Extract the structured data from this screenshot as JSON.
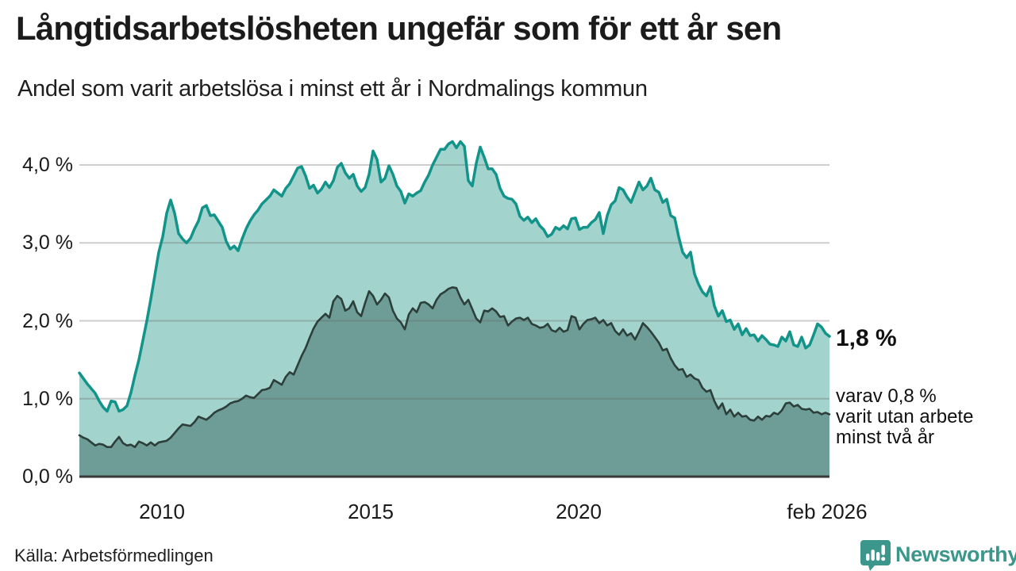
{
  "header": {
    "title": "Långtidsarbetslösheten ungefär som för ett år sen",
    "subtitle": "Andel som varit arbetslösa i minst ett år i Nordmalings kommun"
  },
  "annotations": {
    "end_value": "1,8 %",
    "secondary_line1": "varav 0,8 %",
    "secondary_line2": "varit utan arbete",
    "secondary_line3": "minst två år"
  },
  "footer": {
    "source": "Källa: Arbetsförmedlingen",
    "logo_text": "Newsworthy"
  },
  "colors": {
    "total_line": "#12948a",
    "total_fill": "#a2d3cc",
    "two_plus_line": "#2d3f3a",
    "two_plus_fill": "#6e9c96",
    "grid": "rgba(100,100,100,0.32)",
    "axis": "#3a3a3a",
    "brand": "#3b968b"
  },
  "chart_data": {
    "type": "area",
    "title": "Långtidsarbetslösheten ungefär som för ett år sen",
    "subtitle": "Andel som varit arbetslösa i minst ett år i Nordmalings kommun",
    "unit": "%",
    "x_unit": "year (monthly data, Jan 2008 – Feb 2026)",
    "x_start": 2008.0,
    "x_end": 2026.17,
    "ylim": [
      0,
      4.49
    ],
    "grid": true,
    "legend": "none",
    "yticks": [
      {
        "value": 4.0,
        "label": "4,0 %"
      },
      {
        "value": 3.0,
        "label": "3,0 %"
      },
      {
        "value": 2.0,
        "label": "2,0 %"
      },
      {
        "value": 1.0,
        "label": "1,0 %"
      },
      {
        "value": 0.0,
        "label": "0,0 %"
      }
    ],
    "xticks": [
      {
        "value": 2010,
        "label": "2010"
      },
      {
        "value": 2015,
        "label": "2015"
      },
      {
        "value": 2020,
        "label": "2020"
      },
      {
        "value": 2026.08,
        "label": "feb 2026"
      }
    ],
    "series": [
      {
        "name": "Andel arbetslösa minst ett år",
        "end_label": "1,8 %",
        "values": [
          1.33,
          1.26,
          1.19,
          1.13,
          1.07,
          0.97,
          0.89,
          0.84,
          0.97,
          0.96,
          0.84,
          0.86,
          0.91,
          1.08,
          1.3,
          1.5,
          1.75,
          2.0,
          2.28,
          2.58,
          2.88,
          3.08,
          3.38,
          3.55,
          3.38,
          3.12,
          3.05,
          3.0,
          3.06,
          3.18,
          3.28,
          3.45,
          3.48,
          3.35,
          3.36,
          3.28,
          3.2,
          3.02,
          2.92,
          2.96,
          2.9,
          3.05,
          3.18,
          3.28,
          3.36,
          3.42,
          3.5,
          3.55,
          3.6,
          3.68,
          3.64,
          3.6,
          3.7,
          3.76,
          3.86,
          3.96,
          3.98,
          3.86,
          3.7,
          3.74,
          3.64,
          3.69,
          3.78,
          3.71,
          3.8,
          3.97,
          4.02,
          3.9,
          3.83,
          3.88,
          3.73,
          3.66,
          3.71,
          3.88,
          4.18,
          4.07,
          3.78,
          3.83,
          3.99,
          3.88,
          3.73,
          3.66,
          3.51,
          3.63,
          3.6,
          3.64,
          3.67,
          3.78,
          3.87,
          4.0,
          4.1,
          4.2,
          4.2,
          4.27,
          4.3,
          4.22,
          4.3,
          4.24,
          3.8,
          3.73,
          4.02,
          4.23,
          4.1,
          3.95,
          3.95,
          3.88,
          3.7,
          3.6,
          3.57,
          3.56,
          3.5,
          3.34,
          3.29,
          3.33,
          3.26,
          3.31,
          3.22,
          3.17,
          3.08,
          3.11,
          3.2,
          3.17,
          3.22,
          3.18,
          3.31,
          3.32,
          3.17,
          3.2,
          3.2,
          3.26,
          3.3,
          3.39,
          3.12,
          3.35,
          3.49,
          3.54,
          3.71,
          3.68,
          3.59,
          3.52,
          3.65,
          3.78,
          3.68,
          3.73,
          3.83,
          3.68,
          3.65,
          3.52,
          3.56,
          3.35,
          3.32,
          3.08,
          2.88,
          2.81,
          2.88,
          2.6,
          2.47,
          2.37,
          2.32,
          2.44,
          2.19,
          2.06,
          2.13,
          1.99,
          2.01,
          1.89,
          1.96,
          1.82,
          1.9,
          1.81,
          1.82,
          1.74,
          1.81,
          1.76,
          1.7,
          1.69,
          1.67,
          1.79,
          1.74,
          1.86,
          1.69,
          1.67,
          1.79,
          1.65,
          1.69,
          1.82,
          1.96,
          1.92,
          1.84,
          1.8
        ]
      },
      {
        "name": "Andel utan arbete minst två år",
        "end_label": "0,8 %",
        "values": [
          0.53,
          0.5,
          0.48,
          0.44,
          0.4,
          0.42,
          0.41,
          0.38,
          0.38,
          0.45,
          0.51,
          0.43,
          0.4,
          0.41,
          0.38,
          0.45,
          0.43,
          0.4,
          0.44,
          0.4,
          0.44,
          0.45,
          0.46,
          0.5,
          0.56,
          0.62,
          0.67,
          0.66,
          0.65,
          0.7,
          0.77,
          0.75,
          0.73,
          0.77,
          0.82,
          0.85,
          0.87,
          0.9,
          0.94,
          0.96,
          0.97,
          1.0,
          1.04,
          1.02,
          1.01,
          1.06,
          1.11,
          1.12,
          1.14,
          1.24,
          1.21,
          1.18,
          1.28,
          1.34,
          1.31,
          1.43,
          1.55,
          1.65,
          1.78,
          1.9,
          1.99,
          2.04,
          2.09,
          2.04,
          2.25,
          2.32,
          2.28,
          2.13,
          2.16,
          2.25,
          2.11,
          2.06,
          2.23,
          2.38,
          2.32,
          2.21,
          2.27,
          2.35,
          2.3,
          2.13,
          2.03,
          1.98,
          1.89,
          2.08,
          2.16,
          2.11,
          2.23,
          2.24,
          2.21,
          2.16,
          2.27,
          2.34,
          2.37,
          2.41,
          2.43,
          2.42,
          2.3,
          2.21,
          2.27,
          2.15,
          2.03,
          1.98,
          2.13,
          2.12,
          2.16,
          2.12,
          2.05,
          2.06,
          1.94,
          1.99,
          2.03,
          2.04,
          2.01,
          2.04,
          1.96,
          1.94,
          1.91,
          1.92,
          1.96,
          1.88,
          1.86,
          1.91,
          1.86,
          1.88,
          2.06,
          2.04,
          1.89,
          1.96,
          2.01,
          2.02,
          2.04,
          1.97,
          2.01,
          1.94,
          1.97,
          1.87,
          1.82,
          1.89,
          1.81,
          1.84,
          1.76,
          1.86,
          1.97,
          1.92,
          1.86,
          1.79,
          1.72,
          1.62,
          1.64,
          1.52,
          1.43,
          1.37,
          1.38,
          1.28,
          1.31,
          1.26,
          1.24,
          1.14,
          1.09,
          1.11,
          0.97,
          0.87,
          0.94,
          0.8,
          0.86,
          0.77,
          0.82,
          0.77,
          0.78,
          0.73,
          0.72,
          0.77,
          0.73,
          0.78,
          0.77,
          0.82,
          0.8,
          0.85,
          0.94,
          0.95,
          0.9,
          0.92,
          0.87,
          0.86,
          0.87,
          0.82,
          0.83,
          0.8,
          0.82,
          0.8
        ]
      }
    ]
  }
}
